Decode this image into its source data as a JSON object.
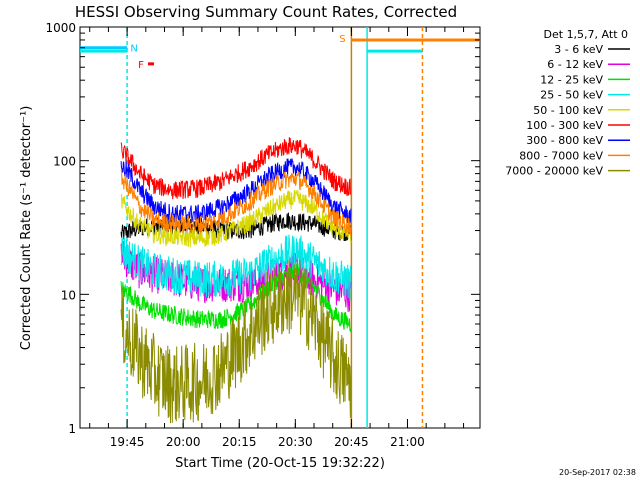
{
  "chart_data": {
    "type": "line",
    "title": "HESSI Observing Summary Count Rates, Corrected",
    "xlabel": "Start Time (20-Oct-15 19:32:22)",
    "ylabel": "Corrected Count Rate (s⁻¹ detector⁻¹)",
    "timestamp": "20-Sep-2017 02:38",
    "scale": {
      "y": "log",
      "ylim": [
        1,
        1000
      ],
      "xlim_minutes": [
        0,
        107
      ]
    },
    "x_unit": "minutes since 19:32:22",
    "x_ticks": [
      {
        "label": "19:45",
        "t": 12.6
      },
      {
        "label": "20:00",
        "t": 27.6
      },
      {
        "label": "20:15",
        "t": 42.6
      },
      {
        "label": "20:30",
        "t": 57.6
      },
      {
        "label": "20:45",
        "t": 72.6
      },
      {
        "label": "21:00",
        "t": 87.6
      }
    ],
    "y_ticks": [
      {
        "label": "1",
        "value": 1
      },
      {
        "label": "10",
        "value": 10
      },
      {
        "label": "100",
        "value": 100
      },
      {
        "label": "1000",
        "value": 1000
      }
    ],
    "legend_title": "Det 1,5,7, Att 0",
    "legend_position": "right",
    "series": [
      {
        "name": "3 - 6 keV",
        "color": "#000000",
        "data": [
          [
            11.0,
            28
          ],
          [
            13.5,
            30
          ],
          [
            18,
            32
          ],
          [
            25,
            33
          ],
          [
            32,
            32
          ],
          [
            38,
            30
          ],
          [
            45,
            30
          ],
          [
            50,
            33
          ],
          [
            55,
            36
          ],
          [
            58,
            35
          ],
          [
            62,
            34
          ],
          [
            68,
            30
          ],
          [
            72.5,
            29
          ]
        ]
      },
      {
        "name": "6 - 12 keV",
        "color": "#e000e0",
        "data": [
          [
            11.0,
            20
          ],
          [
            13.5,
            17
          ],
          [
            16,
            15
          ],
          [
            20,
            14
          ],
          [
            25,
            13
          ],
          [
            32,
            12
          ],
          [
            38,
            12
          ],
          [
            45,
            12
          ],
          [
            50,
            13
          ],
          [
            55,
            15
          ],
          [
            58,
            15
          ],
          [
            62,
            13
          ],
          [
            68,
            11
          ],
          [
            72.5,
            10
          ]
        ]
      },
      {
        "name": "12 - 25 keV",
        "color": "#00e000",
        "data": [
          [
            11.0,
            11
          ],
          [
            13.5,
            10
          ],
          [
            16,
            8.5
          ],
          [
            20,
            7.5
          ],
          [
            25,
            7
          ],
          [
            32,
            6.5
          ],
          [
            38,
            6.5
          ],
          [
            45,
            8
          ],
          [
            50,
            11
          ],
          [
            55,
            14
          ],
          [
            58,
            15
          ],
          [
            62,
            12
          ],
          [
            68,
            7
          ],
          [
            72.5,
            6
          ]
        ]
      },
      {
        "name": "25 - 50 keV",
        "color": "#00e8e8",
        "data": [
          [
            11.0,
            22
          ],
          [
            13.5,
            19
          ],
          [
            16,
            17
          ],
          [
            20,
            15
          ],
          [
            25,
            14
          ],
          [
            32,
            13
          ],
          [
            38,
            13
          ],
          [
            45,
            14
          ],
          [
            50,
            17
          ],
          [
            55,
            20
          ],
          [
            58,
            21
          ],
          [
            62,
            18
          ],
          [
            68,
            14
          ],
          [
            72.5,
            12
          ]
        ]
      },
      {
        "name": "50 - 100 keV",
        "color": "#d8d800",
        "data": [
          [
            11.0,
            50
          ],
          [
            13.5,
            40
          ],
          [
            16,
            33
          ],
          [
            20,
            28
          ],
          [
            25,
            27
          ],
          [
            32,
            26
          ],
          [
            38,
            28
          ],
          [
            45,
            34
          ],
          [
            50,
            42
          ],
          [
            55,
            50
          ],
          [
            58,
            52
          ],
          [
            62,
            45
          ],
          [
            68,
            31
          ],
          [
            72.5,
            28
          ]
        ]
      },
      {
        "name": "100 - 300 keV",
        "color": "#ff0000",
        "data": [
          [
            11.0,
            120
          ],
          [
            13.5,
            100
          ],
          [
            16,
            80
          ],
          [
            20,
            65
          ],
          [
            25,
            60
          ],
          [
            32,
            62
          ],
          [
            38,
            70
          ],
          [
            45,
            88
          ],
          [
            50,
            110
          ],
          [
            55,
            128
          ],
          [
            58,
            130
          ],
          [
            62,
            105
          ],
          [
            68,
            70
          ],
          [
            72.5,
            62
          ]
        ]
      },
      {
        "name": "300 - 800 keV",
        "color": "#0000ff",
        "data": [
          [
            11.0,
            92
          ],
          [
            13.5,
            78
          ],
          [
            16,
            60
          ],
          [
            20,
            45
          ],
          [
            25,
            40
          ],
          [
            32,
            40
          ],
          [
            38,
            45
          ],
          [
            45,
            58
          ],
          [
            50,
            75
          ],
          [
            55,
            88
          ],
          [
            58,
            90
          ],
          [
            62,
            73
          ],
          [
            68,
            45
          ],
          [
            72.5,
            38
          ]
        ]
      },
      {
        "name": "800 - 7000 keV",
        "color": "#ff8000",
        "data": [
          [
            11.0,
            75
          ],
          [
            13.5,
            60
          ],
          [
            16,
            45
          ],
          [
            20,
            36
          ],
          [
            25,
            34
          ],
          [
            32,
            33
          ],
          [
            38,
            37
          ],
          [
            45,
            48
          ],
          [
            50,
            62
          ],
          [
            55,
            72
          ],
          [
            58,
            74
          ],
          [
            62,
            60
          ],
          [
            68,
            37
          ],
          [
            72.5,
            32
          ]
        ]
      },
      {
        "name": "7000 - 20000 keV",
        "color": "#8b8b00",
        "data": [
          [
            11.0,
            6
          ],
          [
            13.5,
            4.5
          ],
          [
            16,
            3.5
          ],
          [
            20,
            2.5
          ],
          [
            25,
            2.1
          ],
          [
            32,
            2.2
          ],
          [
            38,
            2.8
          ],
          [
            45,
            5
          ],
          [
            50,
            7.5
          ],
          [
            55,
            9.5
          ],
          [
            58,
            10
          ],
          [
            62,
            7
          ],
          [
            68,
            3.2
          ],
          [
            72.5,
            2.2
          ]
        ]
      }
    ],
    "flag_markers": [
      {
        "label": "N",
        "color": "#00ccff",
        "bar_t": [
          0,
          12.6
        ],
        "value": 700
      },
      {
        "label": "F",
        "color": "#ff0000",
        "bar_t": [
          18.2,
          19.8
        ],
        "value": 530
      },
      {
        "label": "S",
        "color": "#ff8000",
        "bar_t": [
          72.6,
          107
        ],
        "value": 800
      }
    ],
    "vertical_lines": [
      {
        "t": 12.6,
        "color": "#00e8e8",
        "style": "dashed"
      },
      {
        "t": 72.6,
        "color": "#c88000",
        "style": "solid"
      },
      {
        "t": 76.8,
        "color": "#00e8e8",
        "style": "solid"
      },
      {
        "t": 91.6,
        "color": "#ff8000",
        "style": "dashed"
      }
    ],
    "cyan_bar": {
      "color": "#00e8e8",
      "segments": [
        [
          0,
          12.6
        ],
        [
          76.8,
          91.6
        ]
      ],
      "value": 660
    }
  }
}
